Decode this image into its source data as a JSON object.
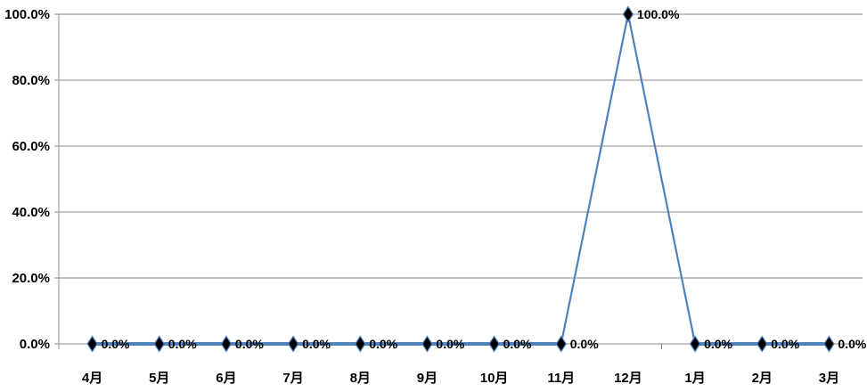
{
  "chart_data": {
    "type": "line",
    "categories": [
      "4月",
      "5月",
      "6月",
      "7月",
      "8月",
      "9月",
      "10月",
      "11月",
      "12月",
      "1月",
      "2月",
      "3月"
    ],
    "series": [
      {
        "values": [
          0,
          0,
          0,
          0,
          0,
          0,
          0,
          0,
          100,
          0,
          0,
          0
        ],
        "data_labels": [
          "0.0%",
          "0.0%",
          "0.0%",
          "0.0%",
          "0.0%",
          "0.0%",
          "0.0%",
          "0.0%",
          "100.0%",
          "0.0%",
          "0.0%",
          "0.0%"
        ]
      }
    ],
    "y_ticks": [
      "0.0%",
      "20.0%",
      "40.0%",
      "60.0%",
      "80.0%",
      "100.0%"
    ],
    "ylim": [
      0,
      100
    ],
    "y_unit": "%",
    "grid": "horizontal",
    "legend": "none",
    "colors": {
      "line": "#4f81bd",
      "marker": "#000000",
      "grid": "#888888",
      "axis": "#888888"
    }
  }
}
